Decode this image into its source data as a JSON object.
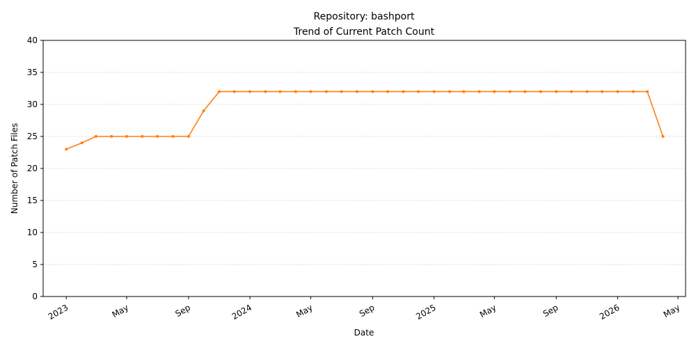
{
  "chart_data": {
    "type": "line",
    "title_line1": "Repository: bashport",
    "title_line2": "Trend of Current Patch Count",
    "xlabel": "Date",
    "ylabel": "Number of Patch Files",
    "ylim": [
      0,
      40
    ],
    "yticks": [
      0,
      5,
      10,
      15,
      20,
      25,
      30,
      35,
      40
    ],
    "xlim": [
      "2022-11-16",
      "2026-05-16"
    ],
    "xticks": [
      {
        "date": "2023-01-01",
        "label": "2023"
      },
      {
        "date": "2023-05-01",
        "label": "May"
      },
      {
        "date": "2023-09-01",
        "label": "Sep"
      },
      {
        "date": "2024-01-01",
        "label": "2024"
      },
      {
        "date": "2024-05-01",
        "label": "May"
      },
      {
        "date": "2024-09-01",
        "label": "Sep"
      },
      {
        "date": "2025-01-01",
        "label": "2025"
      },
      {
        "date": "2025-05-01",
        "label": "May"
      },
      {
        "date": "2025-09-01",
        "label": "Sep"
      },
      {
        "date": "2026-01-01",
        "label": "2026"
      },
      {
        "date": "2026-05-01",
        "label": "May"
      }
    ],
    "grid": "horizontal",
    "line_color": "#ff7f0e",
    "series": [
      {
        "x": [
          "2023-01-01",
          "2023-02-01",
          "2023-03-01",
          "2023-04-01",
          "2023-05-01",
          "2023-06-01",
          "2023-07-01",
          "2023-08-01",
          "2023-09-01",
          "2023-10-01",
          "2023-11-01",
          "2023-12-01",
          "2024-01-01",
          "2024-02-01",
          "2024-03-01",
          "2024-04-01",
          "2024-05-01",
          "2024-06-01",
          "2024-07-01",
          "2024-08-01",
          "2024-09-01",
          "2024-10-01",
          "2024-11-01",
          "2024-12-01",
          "2025-01-01",
          "2025-02-01",
          "2025-03-01",
          "2025-04-01",
          "2025-05-01",
          "2025-06-01",
          "2025-07-01",
          "2025-08-01",
          "2025-09-01",
          "2025-10-01",
          "2025-11-01",
          "2025-12-01",
          "2026-01-01",
          "2026-02-01",
          "2026-03-01",
          "2026-04-01"
        ],
        "values": [
          23,
          24,
          25,
          25,
          25,
          25,
          25,
          25,
          25,
          29,
          32,
          32,
          32,
          32,
          32,
          32,
          32,
          32,
          32,
          32,
          32,
          32,
          32,
          32,
          32,
          32,
          32,
          32,
          32,
          32,
          32,
          32,
          32,
          32,
          32,
          32,
          32,
          32,
          32,
          25
        ]
      }
    ]
  }
}
